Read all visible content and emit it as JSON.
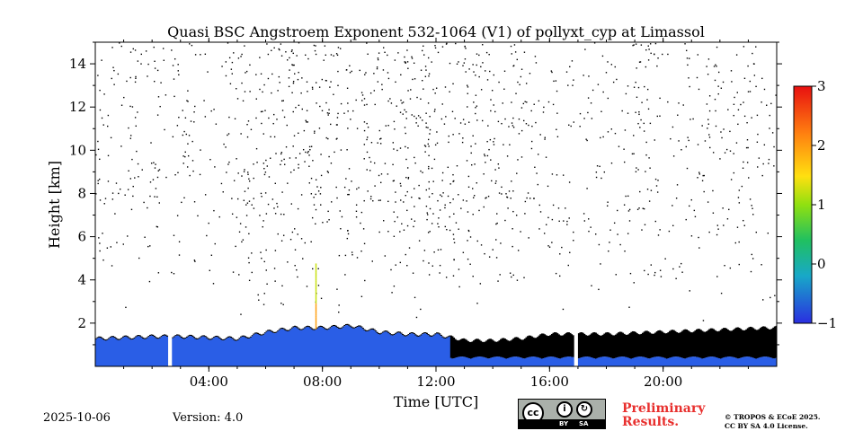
{
  "chart_data": {
    "type": "heatmap",
    "title": "Quasi BSC Angstroem Exponent 532-1064 (V1) of pollyxt_cyp at Limassol",
    "xlabel": "Time [UTC]",
    "ylabel": "Height [km]",
    "xlim_hours": [
      0,
      24
    ],
    "ylim_km": [
      0,
      15
    ],
    "x_ticks": [
      {
        "value": 4,
        "label": "04:00"
      },
      {
        "value": 8,
        "label": "08:00"
      },
      {
        "value": 12,
        "label": "12:00"
      },
      {
        "value": 16,
        "label": "16:00"
      },
      {
        "value": 20,
        "label": "20:00"
      }
    ],
    "y_ticks": [
      {
        "value": 2,
        "label": "2"
      },
      {
        "value": 4,
        "label": "4"
      },
      {
        "value": 6,
        "label": "6"
      },
      {
        "value": 8,
        "label": "8"
      },
      {
        "value": 10,
        "label": "10"
      },
      {
        "value": 12,
        "label": "12"
      },
      {
        "value": 14,
        "label": "14"
      }
    ],
    "colorbar": {
      "min": -1,
      "max": 3,
      "ticks": [
        {
          "value": 3,
          "label": "3"
        },
        {
          "value": 2,
          "label": "2"
        },
        {
          "value": 1,
          "label": "1"
        },
        {
          "value": 0,
          "label": "0"
        },
        {
          "value": -1,
          "label": "−1"
        }
      ]
    },
    "data_gaps_hours": [
      [
        2.5,
        2.65
      ],
      [
        16.85,
        17.0
      ]
    ],
    "boundary_layer_top_km": [
      [
        0,
        1.3
      ],
      [
        2,
        1.4
      ],
      [
        3,
        1.4
      ],
      [
        5,
        1.3
      ],
      [
        6,
        1.6
      ],
      [
        7,
        1.8
      ],
      [
        8,
        1.8
      ],
      [
        9,
        1.9
      ],
      [
        10,
        1.6
      ],
      [
        11,
        1.5
      ],
      [
        12,
        1.5
      ],
      [
        13,
        1.2
      ],
      [
        14,
        1.2
      ],
      [
        15,
        1.3
      ],
      [
        16,
        1.5
      ],
      [
        17,
        1.5
      ],
      [
        18,
        1.5
      ],
      [
        20,
        1.6
      ],
      [
        22,
        1.7
      ],
      [
        24,
        1.8
      ]
    ]
  },
  "meta": {
    "date": "2025-10-06",
    "version": "Version: 4.0",
    "prelim_line1": "Preliminary",
    "prelim_line2": "Results.",
    "copyright_line1": "© TROPOS & ECoE 2025.",
    "copyright_line2": "CC BY SA 4.0 License.",
    "cc_by": "BY",
    "cc_sa": "SA",
    "cc_label": "cc"
  },
  "colors": {
    "colormap": [
      "#2a2ee0",
      "#1e6be0",
      "#18a8c8",
      "#20c080",
      "#60d020",
      "#c8e010",
      "#ffe010",
      "#ffa010",
      "#ff6010",
      "#e81010"
    ],
    "boundary_layer": "#000000",
    "near_ground": "#2a5ee6",
    "prelim_text": "#e8302e"
  }
}
